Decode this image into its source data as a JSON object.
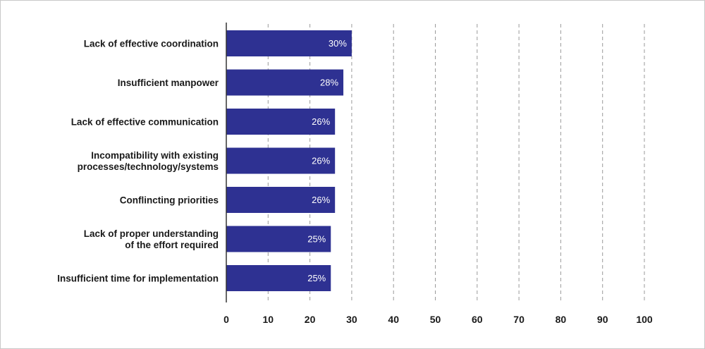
{
  "chart_data": {
    "type": "bar",
    "orientation": "horizontal",
    "categories": [
      [
        "Lack of effective coordination"
      ],
      [
        "Insufficient manpower"
      ],
      [
        "Lack of effective communication"
      ],
      [
        "Incompatibility with existing",
        "processes/technology/systems"
      ],
      [
        "Conflincting priorities"
      ],
      [
        "Lack of proper understanding",
        "of the effort required"
      ],
      [
        "Insufficient time for implementation"
      ]
    ],
    "values": [
      30,
      28,
      26,
      26,
      26,
      25,
      25
    ],
    "data_labels": [
      "30%",
      "28%",
      "26%",
      "26%",
      "26%",
      "25%",
      "25%"
    ],
    "xlim": [
      0,
      100
    ],
    "x_ticks": [
      0,
      10,
      20,
      30,
      40,
      50,
      60,
      70,
      80,
      90,
      100
    ],
    "x_tick_labels": [
      "0",
      "10",
      "20",
      "30",
      "40",
      "50",
      "60",
      "70",
      "80",
      "90",
      "100"
    ],
    "grid": "vertical-dashed",
    "bar_color": "#2e3192",
    "grid_color": "#9a9a9a",
    "axis_color": "#333333"
  }
}
